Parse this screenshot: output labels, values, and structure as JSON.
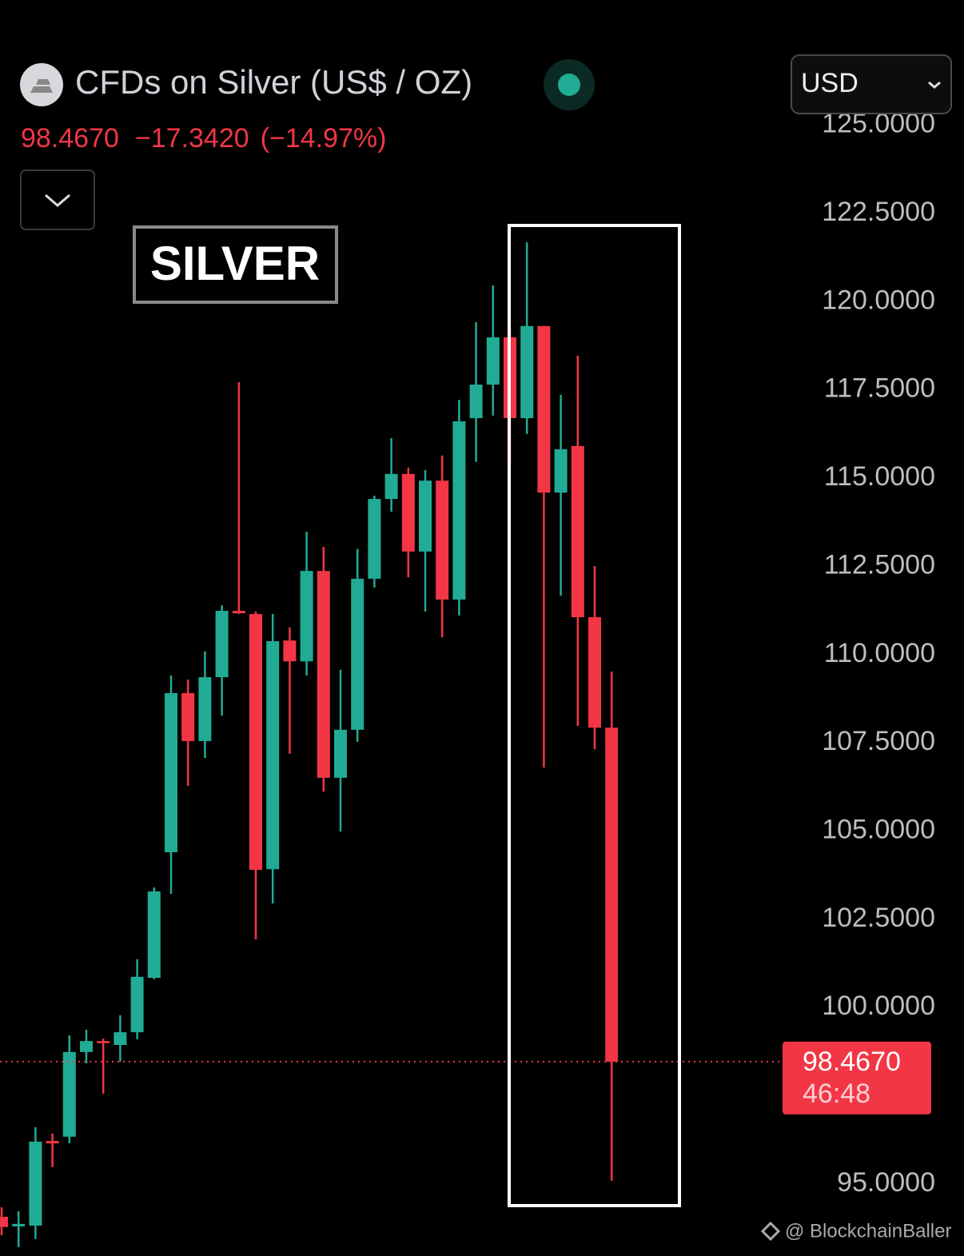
{
  "chart_data": {
    "type": "candlestick",
    "title": "CFDs on Silver (US$ / OZ)",
    "price": "98.4670",
    "change": "−17.3420",
    "change_pct": "(−14.97%)",
    "currency": "USD",
    "annotation": "SILVER",
    "watermark": "@ BlockchainBaller",
    "last_price": {
      "value": 98.467,
      "label": "98.4670"
    },
    "countdown": "46:48",
    "up_color": "#22ab94",
    "down_color": "#f23645",
    "open": [
      94.07,
      93.8,
      93.82,
      96.22,
      96.34,
      98.74,
      99.05,
      98.94,
      99.3,
      100.84,
      104.4,
      108.91,
      107.55,
      109.36,
      111.24,
      111.15,
      103.92,
      110.4,
      109.81,
      112.37,
      106.51,
      107.87,
      112.15,
      114.41,
      115.12,
      112.92,
      114.93,
      111.56,
      116.7,
      117.65,
      118.99,
      116.7,
      119.31,
      114.59,
      115.91,
      111.06,
      107.93
    ],
    "high": [
      94.34,
      94.23,
      96.61,
      96.43,
      99.21,
      99.37,
      99.12,
      99.78,
      101.37,
      103.4,
      109.41,
      109.29,
      110.09,
      111.4,
      117.72,
      111.22,
      111.15,
      110.77,
      113.48,
      113.05,
      109.57,
      112.99,
      114.5,
      116.13,
      115.3,
      115.23,
      115.64,
      117.22,
      119.42,
      120.46,
      119.26,
      121.68,
      119.31,
      117.36,
      118.47,
      112.51,
      109.52
    ],
    "low": [
      93.55,
      93.21,
      93.44,
      95.48,
      96.15,
      98.42,
      97.56,
      98.47,
      99.1,
      100.8,
      103.22,
      106.28,
      107.07,
      108.27,
      111.15,
      101.93,
      102.95,
      107.19,
      109.41,
      106.12,
      104.99,
      107.53,
      111.9,
      114.05,
      112.19,
      111.22,
      110.49,
      111.11,
      115.46,
      116.77,
      115.34,
      116.25,
      106.8,
      111.67,
      107.98,
      107.32,
      95.09
    ],
    "close": [
      93.78,
      93.87,
      96.2,
      96.15,
      98.74,
      99.05,
      98.99,
      99.3,
      100.87,
      103.29,
      108.91,
      107.55,
      109.36,
      111.24,
      111.17,
      103.9,
      110.38,
      109.81,
      112.37,
      106.51,
      107.87,
      112.15,
      114.41,
      115.12,
      112.92,
      114.93,
      111.56,
      116.61,
      117.65,
      118.99,
      116.7,
      119.31,
      114.59,
      115.82,
      111.06,
      107.93,
      98.467
    ],
    "ylim": [
      92.96,
      125.15
    ],
    "yticks": [
      {
        "value": 125,
        "label": "125.0000"
      },
      {
        "value": 122.5,
        "label": "122.5000"
      },
      {
        "value": 120,
        "label": "120.0000"
      },
      {
        "value": 117.5,
        "label": "117.5000"
      },
      {
        "value": 115,
        "label": "115.0000"
      },
      {
        "value": 112.5,
        "label": "112.5000"
      },
      {
        "value": 110,
        "label": "110.0000"
      },
      {
        "value": 107.5,
        "label": "107.5000"
      },
      {
        "value": 105,
        "label": "105.0000"
      },
      {
        "value": 102.5,
        "label": "102.5000"
      },
      {
        "value": 100,
        "label": "100.0000"
      },
      {
        "value": 95,
        "label": "95.0000"
      }
    ]
  }
}
